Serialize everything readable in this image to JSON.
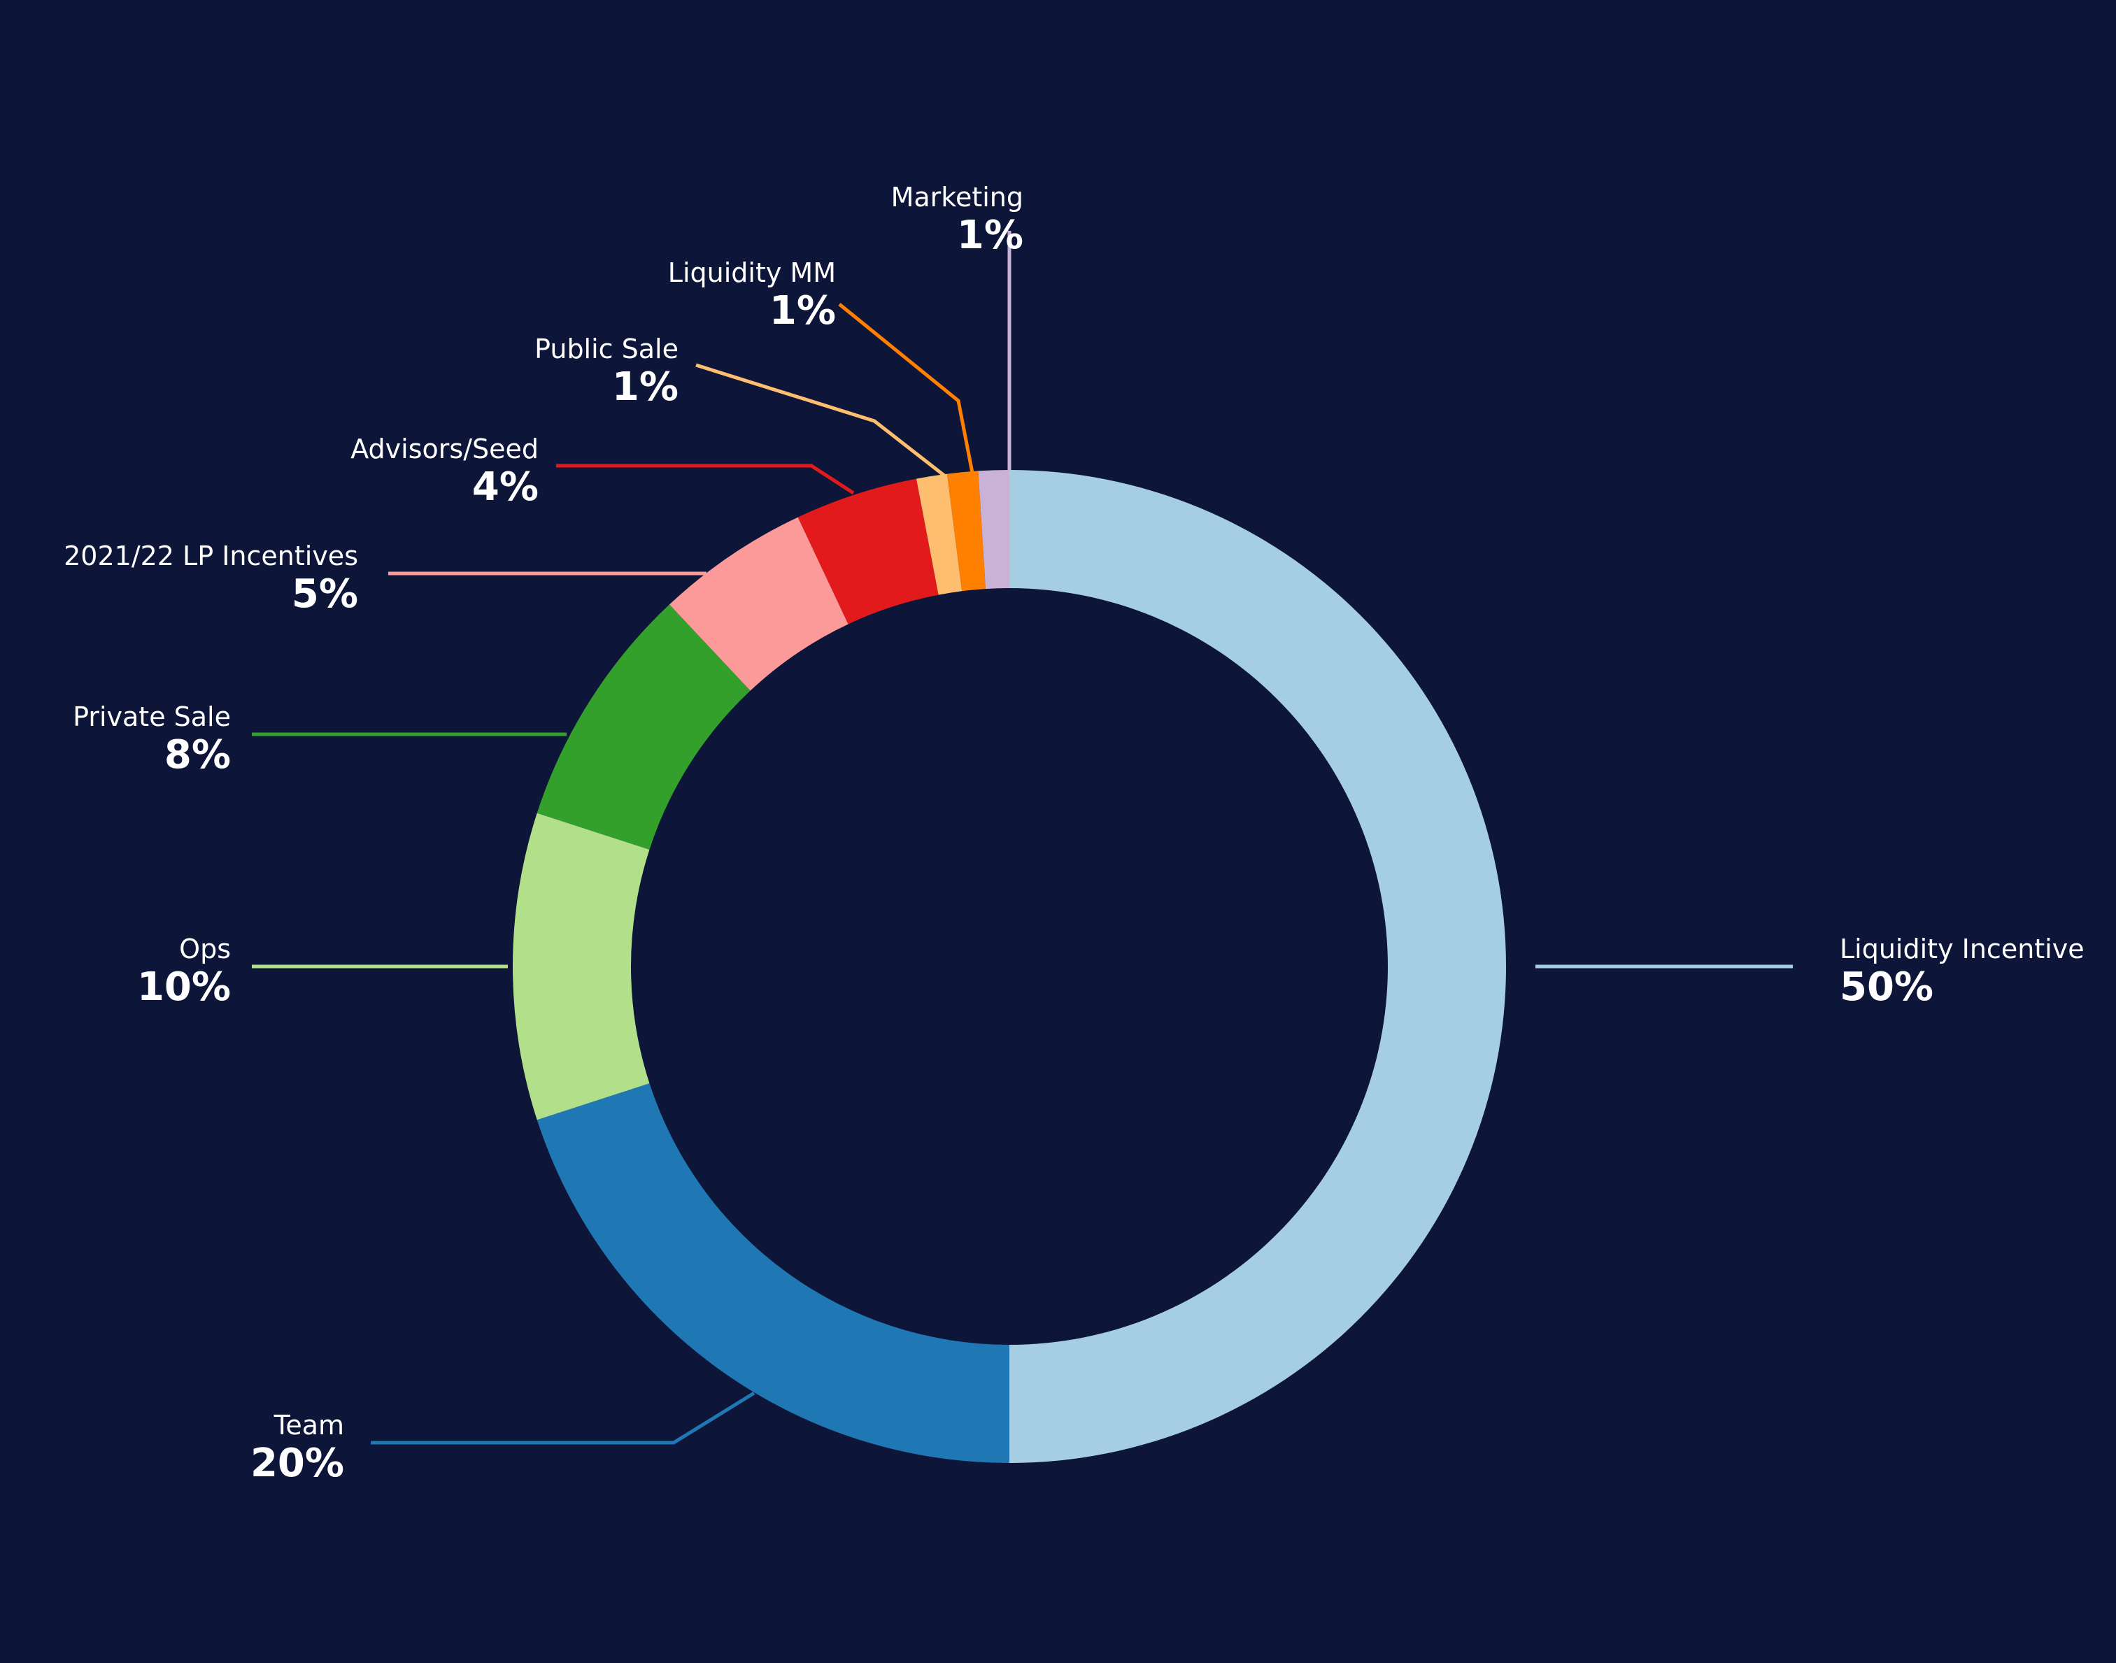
{
  "background_color": "#0d1539",
  "chart_data": {
    "type": "pie",
    "variant": "donut",
    "legend": "none",
    "slices": [
      {
        "label": "Liquidity Incentive",
        "value": 50,
        "display": "50%",
        "color": "#a6cee3"
      },
      {
        "label": "Team",
        "value": 20,
        "display": "20%",
        "color": "#1f78b4"
      },
      {
        "label": "Ops",
        "value": 10,
        "display": "10%",
        "color": "#b2df8a"
      },
      {
        "label": "Private Sale",
        "value": 8,
        "display": "8%",
        "color": "#33a02c"
      },
      {
        "label": "2021/22 LP Incentives",
        "value": 5,
        "display": "5%",
        "color": "#fb9a99"
      },
      {
        "label": "Advisors/Seed",
        "value": 4,
        "display": "4%",
        "color": "#e31a1c"
      },
      {
        "label": "Public Sale",
        "value": 1,
        "display": "1%",
        "color": "#fdbf6f"
      },
      {
        "label": "Liquidity MM",
        "value": 1,
        "display": "1%",
        "color": "#ff7f00"
      },
      {
        "label": "Marketing",
        "value": 1,
        "display": "1%",
        "color": "#cab2d6"
      }
    ]
  }
}
